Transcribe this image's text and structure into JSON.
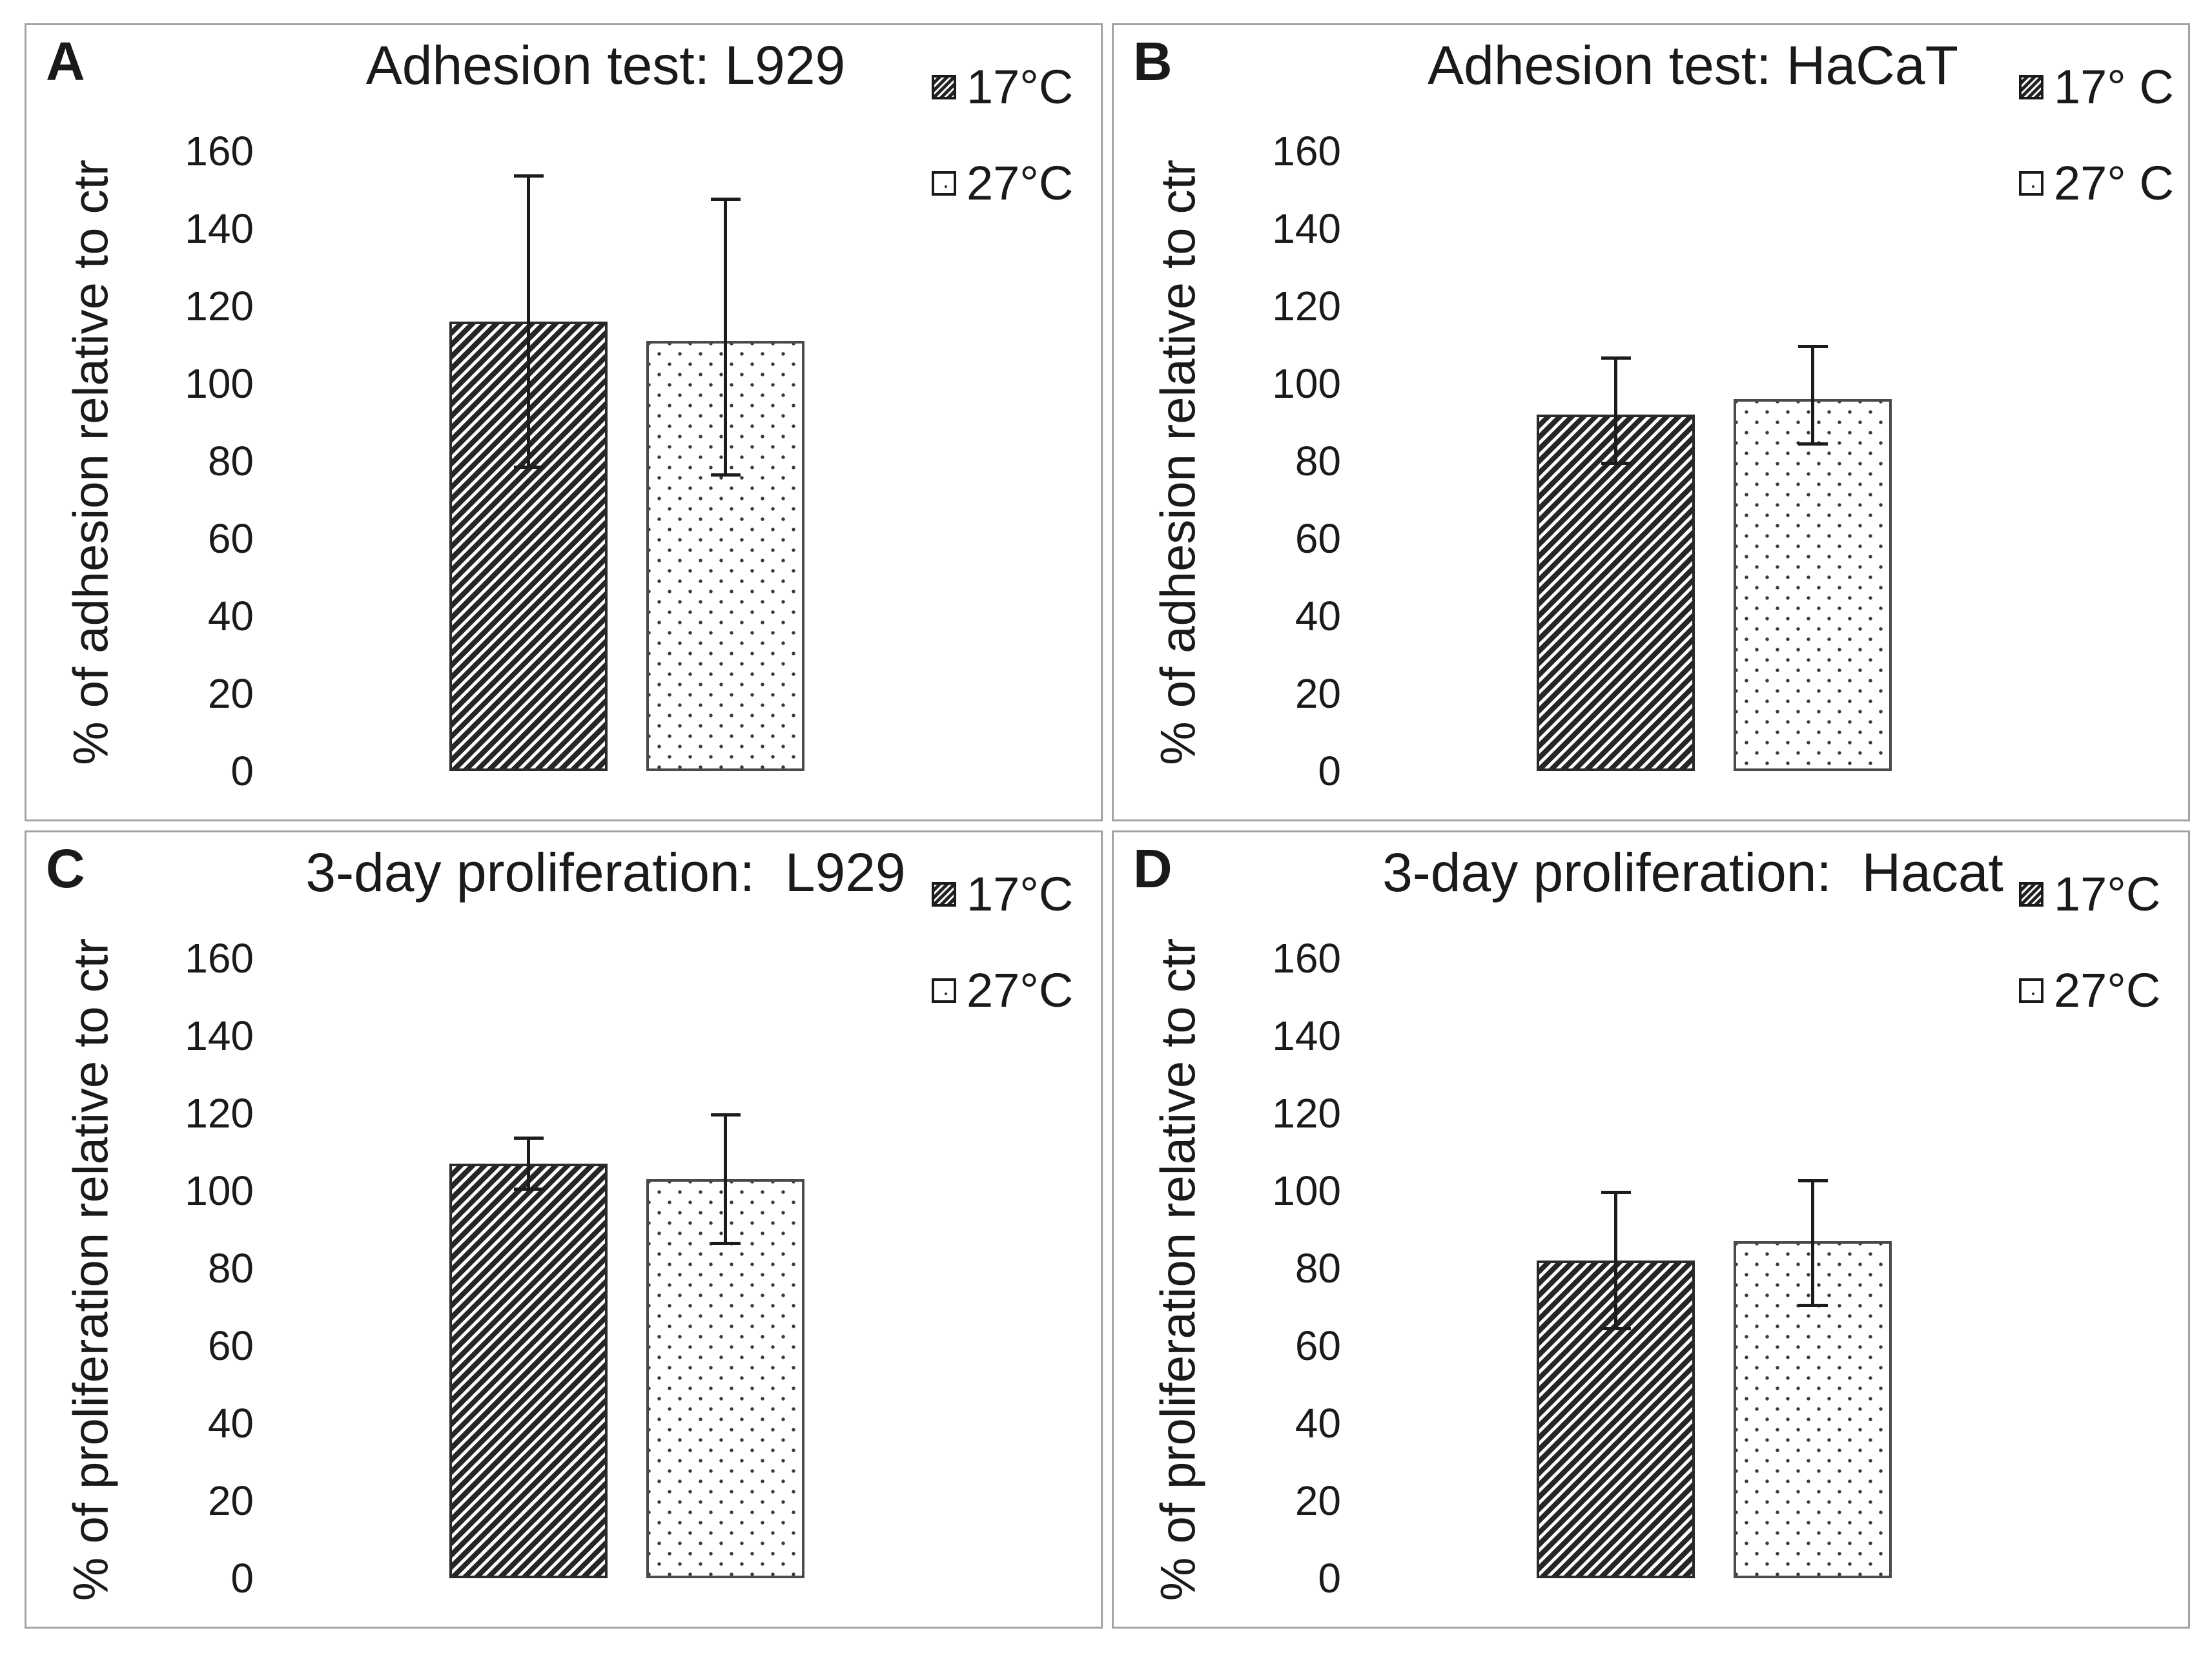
{
  "page": {
    "background": "#ffffff",
    "panel_border_color": "#a3a3a3",
    "text_color": "#1a1a1a",
    "error_bar_color": "#1c1c1c",
    "hatch_pattern_color": "#262626",
    "dot_pattern_color": "#3a3a3a"
  },
  "chart_data": [
    {
      "panel": "A",
      "type": "bar",
      "title": "Adhesion test: L929",
      "ylabel": "% of adhesion relative to ctr",
      "ylim": [
        0,
        160
      ],
      "yticks": [
        160,
        140,
        120,
        100,
        80,
        60,
        40,
        20,
        0
      ],
      "grid": false,
      "legend_position": "top-right",
      "series": [
        {
          "name": "17°C",
          "pattern": "hatch",
          "value": 116,
          "error_low": 78,
          "error_high": 154
        },
        {
          "name": "27°C",
          "pattern": "dots",
          "value": 111,
          "error_low": 76,
          "error_high": 148
        }
      ]
    },
    {
      "panel": "B",
      "type": "bar",
      "title": "Adhesion test: HaCaT",
      "ylabel": "% of adhesion relative to ctr",
      "ylim": [
        0,
        160
      ],
      "yticks": [
        160,
        140,
        120,
        100,
        80,
        60,
        40,
        20,
        0
      ],
      "grid": false,
      "legend_position": "top-right",
      "series": [
        {
          "name": "17° C",
          "pattern": "hatch",
          "value": 92,
          "error_low": 79,
          "error_high": 107
        },
        {
          "name": "27° C",
          "pattern": "dots",
          "value": 96,
          "error_low": 84,
          "error_high": 110
        }
      ]
    },
    {
      "panel": "C",
      "type": "bar",
      "title": "3-day proliferation:  L929",
      "ylabel": "% of proliferation relative to ctr",
      "ylim": [
        0,
        160
      ],
      "yticks": [
        160,
        140,
        120,
        100,
        80,
        60,
        40,
        20,
        0
      ],
      "grid": false,
      "legend_position": "top-right",
      "series": [
        {
          "name": "17°C",
          "pattern": "hatch",
          "value": 107,
          "error_low": 100,
          "error_high": 114
        },
        {
          "name": "27°C",
          "pattern": "dots",
          "value": 103,
          "error_low": 86,
          "error_high": 120
        }
      ]
    },
    {
      "panel": "D",
      "type": "bar",
      "title": "3-day proliferation:  Hacat",
      "ylabel": "% of proliferation relative to ctr",
      "ylim": [
        0,
        160
      ],
      "yticks": [
        160,
        140,
        120,
        100,
        80,
        60,
        40,
        20,
        0
      ],
      "grid": false,
      "legend_position": "top-right",
      "series": [
        {
          "name": "17°C",
          "pattern": "hatch",
          "value": 82,
          "error_low": 64,
          "error_high": 100
        },
        {
          "name": "27°C",
          "pattern": "dots",
          "value": 87,
          "error_low": 70,
          "error_high": 103
        }
      ]
    }
  ]
}
